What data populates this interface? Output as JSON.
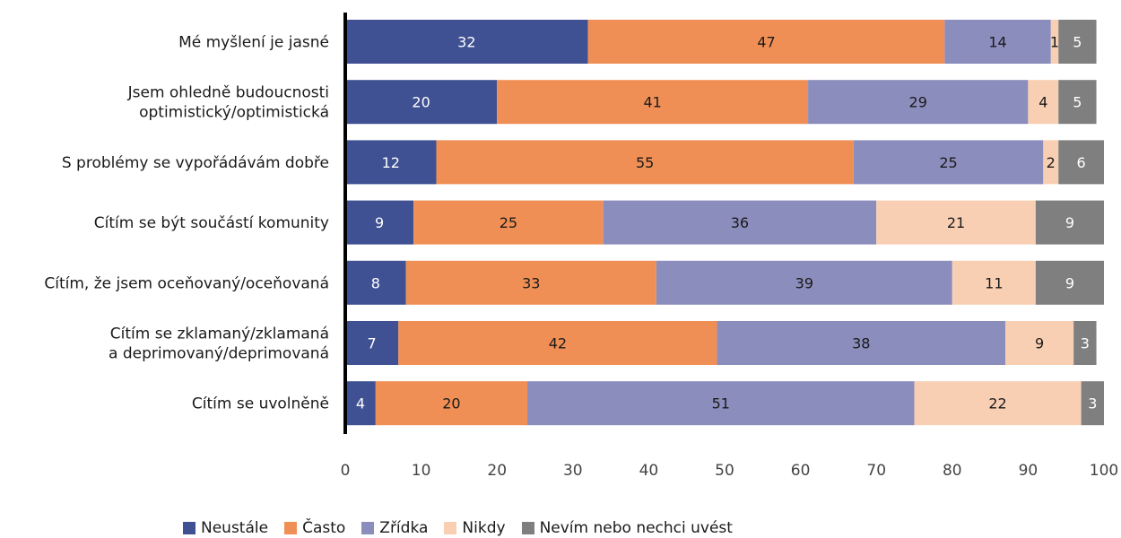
{
  "chart_data": {
    "type": "bar",
    "orientation": "horizontal",
    "stacked": true,
    "categories": [
      [
        "Mé myšlení je jasné"
      ],
      [
        "Jsem ohledně budoucnosti",
        "optimistický/optimistická"
      ],
      [
        "S problémy se vypořádávám dobře"
      ],
      [
        "Cítím se být součástí komunity"
      ],
      [
        "Cítím, že jsem oceňovaný/oceňovaná"
      ],
      [
        "Cítím se zklamaný/zklamaná",
        "a deprimovaný/deprimovaná"
      ],
      [
        "Cítím se uvolněně"
      ]
    ],
    "series": [
      {
        "name": "Neustále",
        "color": "#3f5192",
        "label_color": "#ffffff",
        "values": [
          32,
          20,
          12,
          9,
          8,
          7,
          4
        ]
      },
      {
        "name": "Často",
        "color": "#f08f55",
        "label_color": "#1a1a1a",
        "values": [
          47,
          41,
          55,
          25,
          33,
          42,
          20
        ]
      },
      {
        "name": "Zřídka",
        "color": "#8b8dbd",
        "label_color": "#1a1a1a",
        "values": [
          14,
          29,
          25,
          36,
          39,
          38,
          51
        ]
      },
      {
        "name": "Nikdy",
        "color": "#f9cfb3",
        "label_color": "#1a1a1a",
        "values": [
          1,
          4,
          2,
          21,
          11,
          9,
          22
        ]
      },
      {
        "name": "Nevím nebo nechci uvést",
        "color": "#7f7f7f",
        "label_color": "#ffffff",
        "values": [
          5,
          5,
          6,
          9,
          9,
          3,
          3
        ]
      }
    ],
    "xlim": [
      0,
      100
    ],
    "xticks": [
      0,
      10,
      20,
      30,
      40,
      50,
      60,
      70,
      80,
      90,
      100
    ],
    "grid": false,
    "legend_position": "bottom"
  }
}
